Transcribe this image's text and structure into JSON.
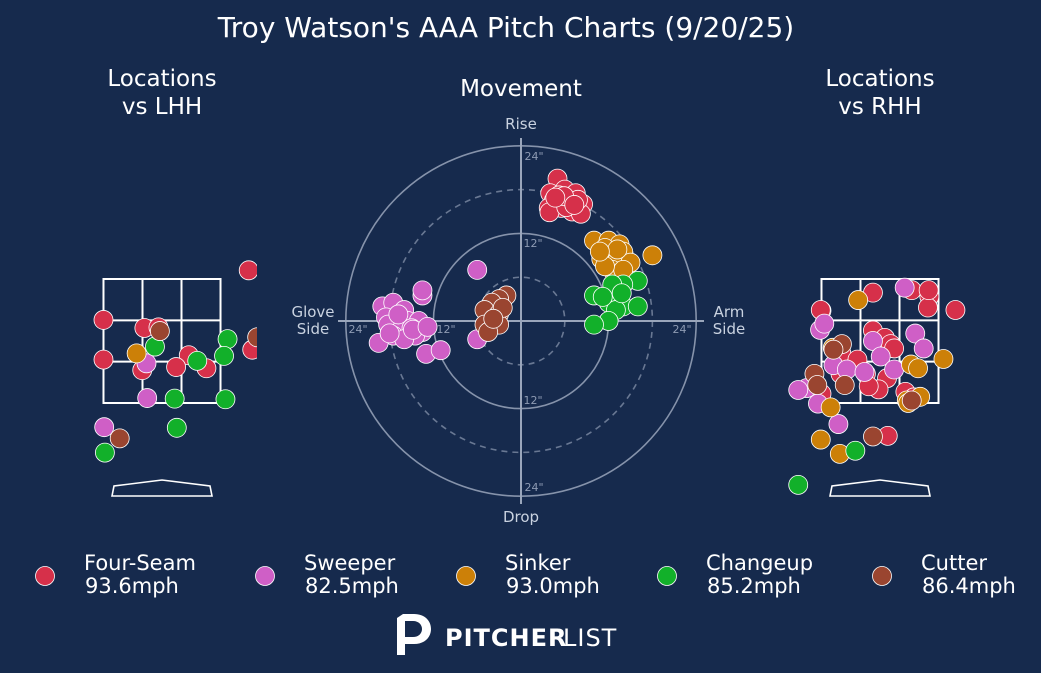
{
  "header": {
    "title": "Troy Watson's AAA Pitch Charts (9/20/25)",
    "left_title": "Locations\nvs LHH",
    "center_title": "Movement",
    "right_title": "Locations\nvs RHH"
  },
  "movement_labels": {
    "top": "Rise",
    "bottom": "Drop",
    "left": "Glove\nSide",
    "right": "Arm\nSide",
    "ring_12": "12\"",
    "ring_24": "24\""
  },
  "colors": {
    "background": "#162a4d",
    "Four-Seam": "#d6304a",
    "Sweeper": "#cf5fc6",
    "Sinker": "#cc8008",
    "Changeup": "#12b02a",
    "Cutter": "#9a4530"
  },
  "legend": [
    {
      "name": "Four-Seam",
      "velo": "93.6mph"
    },
    {
      "name": "Sweeper",
      "velo": "82.5mph"
    },
    {
      "name": "Sinker",
      "velo": "93.0mph"
    },
    {
      "name": "Changeup",
      "velo": "85.2mph"
    },
    {
      "name": "Cutter",
      "velo": "86.4mph"
    }
  ],
  "branding": {
    "logo_bold": "PITCHER",
    "logo_light": "LIST"
  },
  "chart_data": [
    {
      "type": "scatter",
      "name": "locations_lhh",
      "title": "Locations\nvs LHH",
      "units": "feet from plate center (catcher view); height in feet",
      "xlim": [
        -1.9,
        1.9
      ],
      "ylim": [
        -0.5,
        4.7
      ],
      "strike_zone": {
        "x": [
          -0.83,
          0.83
        ],
        "y": [
          1.5,
          3.5
        ]
      },
      "series": [
        {
          "name": "Four-Seam",
          "points": [
            [
              1.23,
              3.64
            ],
            [
              -0.83,
              2.84
            ],
            [
              -0.25,
              2.71
            ],
            [
              -0.05,
              2.72
            ],
            [
              0.38,
              2.27
            ],
            [
              1.28,
              2.36
            ],
            [
              -0.83,
              2.2
            ],
            [
              -0.28,
              2.03
            ],
            [
              0.2,
              2.08
            ],
            [
              0.63,
              2.06
            ]
          ]
        },
        {
          "name": "Sweeper",
          "points": [
            [
              -0.22,
              2.14
            ],
            [
              -0.21,
              1.58
            ],
            [
              -0.82,
              1.11
            ]
          ]
        },
        {
          "name": "Sinker",
          "points": [
            [
              -0.36,
              2.3
            ]
          ]
        },
        {
          "name": "Changeup",
          "points": [
            [
              -0.1,
              2.41
            ],
            [
              0.5,
              2.18
            ],
            [
              0.93,
              2.53
            ],
            [
              0.88,
              2.26
            ],
            [
              0.18,
              1.57
            ],
            [
              0.9,
              1.56
            ],
            [
              0.21,
              1.1
            ],
            [
              -0.81,
              0.7
            ]
          ]
        },
        {
          "name": "Cutter",
          "points": [
            [
              -0.03,
              2.66
            ],
            [
              1.35,
              2.56
            ],
            [
              -0.6,
              0.93
            ]
          ]
        }
      ]
    },
    {
      "type": "scatter",
      "name": "movement",
      "title": "Movement",
      "units": "inches (horizontal: glove side negative, arm side positive; vertical: rise positive)",
      "xlim": [
        -24,
        24
      ],
      "ylim": [
        -24,
        24
      ],
      "rings": [
        6,
        12,
        18,
        24
      ],
      "series": [
        {
          "name": "Four-Seam",
          "points": [
            [
              5,
              19.5
            ],
            [
              4,
              17.5
            ],
            [
              6,
              18
            ],
            [
              7.5,
              17.5
            ],
            [
              4.5,
              16.5
            ],
            [
              6.5,
              16.5
            ],
            [
              8.5,
              16
            ],
            [
              5.5,
              15.5
            ],
            [
              7,
              15
            ],
            [
              3.8,
              15.5
            ],
            [
              5.2,
              17.2
            ],
            [
              8.2,
              14.7
            ],
            [
              3.9,
              14.9
            ],
            [
              7.8,
              16.6
            ],
            [
              6.2,
              15.6
            ],
            [
              5.9,
              17.1
            ],
            [
              7.3,
              15.9
            ],
            [
              4.7,
              16.9
            ]
          ]
        },
        {
          "name": "Sweeper",
          "points": [
            [
              -19,
              2
            ],
            [
              -17.5,
              2.5
            ],
            [
              -18.5,
              0.5
            ],
            [
              -16,
              1.5
            ],
            [
              -17,
              0
            ],
            [
              -15.5,
              0
            ],
            [
              -14,
              0
            ],
            [
              -18.2,
              -0.5
            ],
            [
              -16.5,
              -1.3
            ],
            [
              -15,
              -1
            ],
            [
              -13.5,
              -1.5
            ],
            [
              -17.5,
              -2
            ],
            [
              -14.5,
              -2
            ],
            [
              -19.5,
              -3
            ],
            [
              -16,
              -2.5
            ],
            [
              -13,
              -4.5
            ],
            [
              -11,
              -4
            ],
            [
              -13.5,
              3.5
            ],
            [
              -13.5,
              4.2
            ],
            [
              -6,
              7
            ],
            [
              -6,
              -2.5
            ],
            [
              -14.8,
              -1.2
            ],
            [
              -12.8,
              -0.8
            ],
            [
              -18,
              -1.7
            ],
            [
              -16.8,
              0.9
            ]
          ]
        },
        {
          "name": "Sinker",
          "points": [
            [
              10,
              11
            ],
            [
              12,
              11
            ],
            [
              13.5,
              10.5
            ],
            [
              11.5,
              10
            ],
            [
              14,
              9.5
            ],
            [
              12.5,
              9
            ],
            [
              11,
              8.5
            ],
            [
              13,
              8
            ],
            [
              15,
              8
            ],
            [
              12.5,
              7
            ],
            [
              18,
              9
            ],
            [
              14,
              7
            ],
            [
              11.5,
              7.5
            ],
            [
              13.2,
              9.8
            ],
            [
              10.8,
              9.5
            ]
          ]
        },
        {
          "name": "Changeup",
          "points": [
            [
              16,
              5.5
            ],
            [
              14,
              5
            ],
            [
              12.5,
              5
            ],
            [
              10,
              3.5
            ],
            [
              12,
              2.5
            ],
            [
              14,
              2
            ],
            [
              16,
              2
            ],
            [
              13,
              1.5
            ],
            [
              12,
              0
            ],
            [
              10,
              -0.5
            ],
            [
              13.8,
              3.8
            ],
            [
              11.2,
              3.3
            ]
          ]
        },
        {
          "name": "Cutter",
          "points": [
            [
              -2,
              3.5
            ],
            [
              -3,
              3
            ],
            [
              -4,
              2.5
            ],
            [
              -5,
              1.5
            ],
            [
              -3,
              1
            ],
            [
              -5,
              -0.5
            ],
            [
              -3,
              -0.5
            ],
            [
              -4.5,
              -1.5
            ],
            [
              -2.5,
              1.8
            ],
            [
              -3.8,
              0.3
            ]
          ]
        }
      ]
    },
    {
      "type": "scatter",
      "name": "locations_rhh",
      "title": "Locations\nvs RHH",
      "units": "feet from plate center (catcher view); height in feet",
      "xlim": [
        -1.9,
        1.9
      ],
      "ylim": [
        -0.5,
        4.7
      ],
      "strike_zone": {
        "x": [
          -0.83,
          0.83
        ],
        "y": [
          1.5,
          3.5
        ]
      },
      "series": [
        {
          "name": "Four-Seam",
          "points": [
            [
              -0.1,
              3.28
            ],
            [
              0.45,
              3.32
            ],
            [
              0.7,
              3.22
            ],
            [
              0.68,
              3.04
            ],
            [
              1.07,
              3.0
            ],
            [
              -0.83,
              2.99
            ],
            [
              -0.1,
              2.67
            ],
            [
              0.07,
              2.55
            ],
            [
              0.15,
              2.45
            ],
            [
              0.2,
              2.38
            ],
            [
              -0.55,
              2.31
            ],
            [
              -0.32,
              2.2
            ],
            [
              -0.2,
              1.97
            ],
            [
              0.1,
              1.9
            ],
            [
              -0.56,
              1.97
            ],
            [
              -0.02,
              1.72
            ],
            [
              0.36,
              1.68
            ],
            [
              0.48,
              1.59
            ],
            [
              -0.83,
              1.65
            ],
            [
              0.11,
              0.97
            ],
            [
              -0.84,
              3.0
            ],
            [
              0.69,
              3.32
            ],
            [
              -0.16,
              1.77
            ]
          ]
        },
        {
          "name": "Sweeper",
          "points": [
            [
              0.35,
              3.36
            ],
            [
              0.5,
              2.62
            ],
            [
              -0.85,
              2.68
            ],
            [
              -0.1,
              2.5
            ],
            [
              0.01,
              2.25
            ],
            [
              0.62,
              2.38
            ],
            [
              -0.66,
              2.11
            ],
            [
              -0.47,
              2.04
            ],
            [
              -0.22,
              2.0
            ],
            [
              0.2,
              2.04
            ],
            [
              -1.04,
              1.74
            ],
            [
              -0.88,
              1.49
            ],
            [
              -1.61,
              1.53
            ],
            [
              -0.59,
              1.16
            ],
            [
              -1.16,
              1.71
            ],
            [
              -0.79,
              2.78
            ]
          ]
        },
        {
          "name": "Sinker",
          "points": [
            [
              -0.31,
              3.16
            ],
            [
              0.44,
              2.12
            ],
            [
              0.54,
              2.06
            ],
            [
              0.9,
              2.21
            ],
            [
              -0.67,
              2.39
            ],
            [
              -0.7,
              1.43
            ],
            [
              0.38,
              1.54
            ],
            [
              0.57,
              1.6
            ],
            [
              -0.84,
              0.91
            ],
            [
              -0.57,
              0.68
            ],
            [
              0.4,
              1.5
            ]
          ]
        },
        {
          "name": "Changeup",
          "points": [
            [
              -1.16,
              0.18
            ],
            [
              -0.35,
              0.73
            ]
          ]
        },
        {
          "name": "Cutter",
          "points": [
            [
              -0.54,
              2.45
            ],
            [
              -0.66,
              2.36
            ],
            [
              -0.93,
              1.97
            ],
            [
              -0.5,
              1.79
            ],
            [
              -0.89,
              1.79
            ],
            [
              0.45,
              1.54
            ],
            [
              -0.1,
              0.96
            ]
          ]
        }
      ]
    }
  ]
}
